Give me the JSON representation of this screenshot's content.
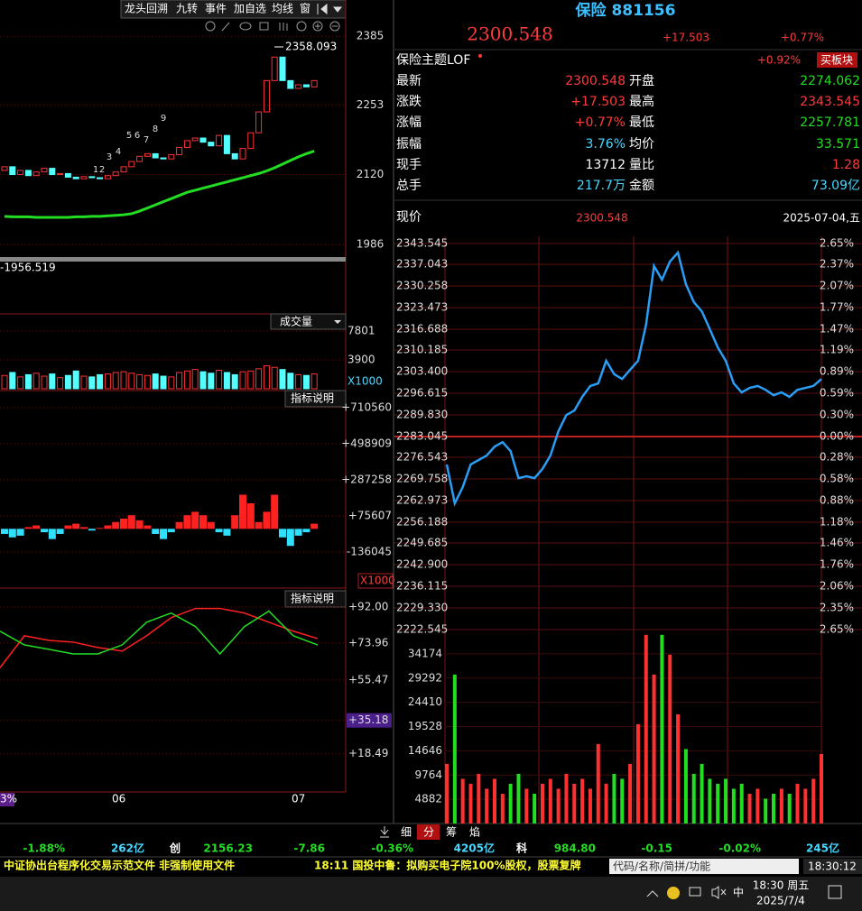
{
  "toolbar": {
    "items": [
      "龙头回溯",
      "九转",
      "事件",
      "加自选",
      "均线",
      "窗"
    ]
  },
  "kline": {
    "type": "candlestick",
    "open": [
      2128,
      2135,
      2120,
      2128,
      2118,
      2125,
      2132,
      2120,
      2122,
      2115,
      2112,
      2116,
      2114,
      2112,
      2118,
      2125,
      2135,
      2145,
      2155,
      2160,
      2152,
      2150,
      2158,
      2172,
      2185,
      2190,
      2182,
      2175,
      2195,
      2160,
      2150,
      2170,
      2200,
      2240,
      2300,
      2345,
      2300,
      2285,
      2292,
      2288
    ],
    "close": [
      2135,
      2120,
      2128,
      2118,
      2125,
      2132,
      2120,
      2122,
      2115,
      2112,
      2116,
      2114,
      2112,
      2118,
      2125,
      2135,
      2145,
      2155,
      2160,
      2152,
      2150,
      2158,
      2172,
      2185,
      2190,
      2182,
      2175,
      2195,
      2160,
      2150,
      2170,
      2200,
      2240,
      2300,
      2345,
      2300,
      2285,
      2292,
      2288,
      2300
    ],
    "ma": [
      2040,
      2039,
      2039,
      2039,
      2038,
      2038,
      2038,
      2038,
      2038,
      2039,
      2039,
      2040,
      2040,
      2041,
      2042,
      2043,
      2045,
      2050,
      2056,
      2062,
      2068,
      2074,
      2080,
      2086,
      2090,
      2094,
      2098,
      2102,
      2106,
      2110,
      2114,
      2118,
      2122,
      2127,
      2133,
      2140,
      2147,
      2154,
      2160,
      2165
    ],
    "ylim": [
      1962,
      2406
    ],
    "yticks": [
      2385,
      2253,
      2120,
      1986
    ],
    "high_label": "2358.093",
    "low_label": "-1956.519",
    "td_labels": [
      "1",
      "2",
      "3",
      "4",
      "5",
      "6",
      "7",
      "8",
      "9"
    ],
    "up_color": "#ff3232",
    "down_color": "#54ffff",
    "ma_color": "#22dd22"
  },
  "kline_volume": {
    "type": "bar",
    "title": "成交量",
    "values": [
      1800,
      2200,
      1600,
      1900,
      2100,
      1700,
      2000,
      1500,
      1800,
      2400,
      1700,
      1600,
      1900,
      2000,
      2200,
      2300,
      2100,
      1900,
      1800,
      2000,
      1700,
      1600,
      2200,
      2400,
      2600,
      2300,
      2100,
      2500,
      2200,
      1900,
      2300,
      2400,
      2700,
      3100,
      2900,
      2600,
      2100,
      1900,
      1800,
      2000
    ],
    "ylim": [
      0,
      8045
    ],
    "yticks": [
      7801,
      3900
    ],
    "unit": "X1000"
  },
  "macd": {
    "type": "bar",
    "title": "指标说明",
    "values": [
      -30000,
      -50000,
      -40000,
      10000,
      20000,
      -20000,
      -60000,
      -30000,
      20000,
      30000,
      10000,
      -10000,
      5000,
      20000,
      40000,
      60000,
      80000,
      50000,
      20000,
      -30000,
      -60000,
      -20000,
      40000,
      80000,
      100000,
      80000,
      40000,
      -20000,
      -40000,
      80000,
      200000,
      150000,
      40000,
      100000,
      200000,
      -50000,
      -100000,
      -40000,
      -20000,
      30000
    ],
    "ylim": [
      -337000,
      715800
    ],
    "yticks": [
      {
        "value": 710560,
        "label": "+710560"
      },
      {
        "value": 498909,
        "label": "+498909"
      },
      {
        "value": 287258,
        "label": "+287258"
      },
      {
        "value": 75607,
        "label": "+75607"
      },
      -136045
    ],
    "unit": "X1000"
  },
  "kdj": {
    "type": "line",
    "title": "指标说明",
    "series": [
      {
        "color": "#ff2020",
        "values": [
          61.6,
          77.6,
          75.3,
          74.4,
          71.7,
          69.9,
          77.6,
          86.7,
          91.3,
          91.3,
          89.0,
          84.4,
          79.9,
          76.2
        ]
      },
      {
        "color": "#22dd22",
        "values": [
          79.9,
          73.0,
          70.8,
          68.5,
          68.5,
          73.0,
          84.4,
          89.0,
          82.2,
          68.5,
          82.2,
          90.0,
          77.6,
          73.0
        ]
      }
    ],
    "ylim": [
      -0.7,
      92.46
    ],
    "yticks": [
      {
        "value": 92,
        "label": "+92.00"
      },
      {
        "value": 73.96,
        "label": "+73.96"
      },
      {
        "value": 55.47,
        "label": "+55.47"
      },
      {
        "value": 35.18,
        "label": "+35.18"
      },
      {
        "value": 18.49,
        "label": "+18.49"
      }
    ]
  },
  "x_axis": {
    "labels": [
      "3%",
      "06",
      "07"
    ]
  },
  "quote": {
    "name": "保险 881156",
    "price": "2300.548",
    "change": "+17.503",
    "change_pct": "+0.77%",
    "fund": "保险主题LOF",
    "fund_pct": "+0.92%",
    "fund_button": "买板块",
    "rows": [
      [
        "最新",
        "2300.548",
        "开盘",
        "2274.062"
      ],
      [
        "涨跌",
        "+17.503",
        "最高",
        "2343.545"
      ],
      [
        "涨幅",
        "+0.77%",
        "最低",
        "2257.781"
      ],
      [
        "振幅",
        "3.76%",
        "均价",
        "33.571"
      ],
      [
        "现手",
        "13712",
        "量比",
        "1.28"
      ],
      [
        "总手",
        "217.7万",
        "金额",
        "73.09亿"
      ]
    ]
  },
  "intraday": {
    "type": "line",
    "price_label": "现价",
    "price": "2300.548",
    "date": "2025-07-04,五",
    "color": "#2a9df4",
    "values": [
      2274.28,
      2262.1,
      2267.2,
      2274.3,
      2275.7,
      2277.1,
      2279.9,
      2281.3,
      2278.5,
      2270.0,
      2270.6,
      2270.0,
      2272.9,
      2277.1,
      2284.7,
      2289.8,
      2291.2,
      2295.5,
      2298.9,
      2299.7,
      2306.8,
      2302.6,
      2301.1,
      2304.0,
      2306.8,
      2318.1,
      2336.5,
      2332.2,
      2337.9,
      2340.7,
      2330.8,
      2325.2,
      2322.3,
      2316.7,
      2311.0,
      2306.8,
      2299.7,
      2296.9,
      2298.3,
      2298.9,
      2297.7,
      2296.0,
      2296.9,
      2295.5,
      2297.7,
      2298.3,
      2298.9,
      2301.1
    ],
    "ylim": [
      2222.545,
      2343.545
    ],
    "yticks": [
      2343.545,
      2337.043,
      2330.258,
      2323.473,
      2316.688,
      2310.185,
      {
        "value": 2303.4,
        "label": "2303.400"
      },
      2296.615,
      {
        "value": 2289.83,
        "label": "2289.830"
      },
      2283.045,
      2276.543,
      2269.758,
      2262.973,
      2256.188,
      2249.685,
      {
        "value": 2242.9,
        "label": "2242.900"
      },
      2236.115,
      {
        "value": 2229.33,
        "label": "2229.330"
      },
      2222.545
    ],
    "pct_labels": [
      "2.65%",
      "2.37%",
      "2.07%",
      "1.77%",
      "1.47%",
      "1.19%",
      "0.89%",
      "0.59%",
      "0.30%",
      "0.00%",
      "0.28%",
      "0.58%",
      "0.88%",
      "1.18%",
      "1.46%",
      "1.76%",
      "2.06%",
      "2.35%",
      "2.65%"
    ],
    "volume": {
      "type": "bar",
      "values": [
        12000,
        30000,
        9000,
        8000,
        10000,
        7000,
        9000,
        6000,
        8000,
        10000,
        7000,
        6000,
        8000,
        9000,
        7000,
        10000,
        8000,
        9000,
        7000,
        16000,
        8000,
        10000,
        9000,
        12000,
        20000,
        38000,
        30000,
        38000,
        34000,
        22000,
        15000,
        10000,
        12000,
        9000,
        8000,
        9000,
        7000,
        8000,
        6000,
        7000,
        5000,
        6000,
        7000,
        6000,
        8000,
        7000,
        9000,
        14000
      ],
      "ylim": [
        0,
        39056
      ],
      "yticks": [
        34174,
        29292,
        24410,
        19528,
        14646,
        9764,
        4882
      ],
      "up_color": "#ff3030",
      "down_color": "#22dd22"
    }
  },
  "tabs": [
    "细",
    "分",
    "筹",
    "焰"
  ],
  "indices": [
    "-1.88%",
    "262亿",
    "创",
    "2156.23",
    "-7.86",
    "-0.36%",
    "4205亿",
    "科",
    "984.80",
    "-0.15",
    "-0.02%",
    "245亿"
  ],
  "ticker": {
    "left": "中证协出台程序化交易示范文件 非强制使用文件",
    "right": "18:11 国投中鲁：拟购买电子院100%股权，股票复牌",
    "search": "代码/名称/简拼/功能",
    "time": "18:30:12"
  },
  "taskbar": {
    "ime": "中",
    "time": "18:30 周五",
    "date": "2025/7/4"
  }
}
